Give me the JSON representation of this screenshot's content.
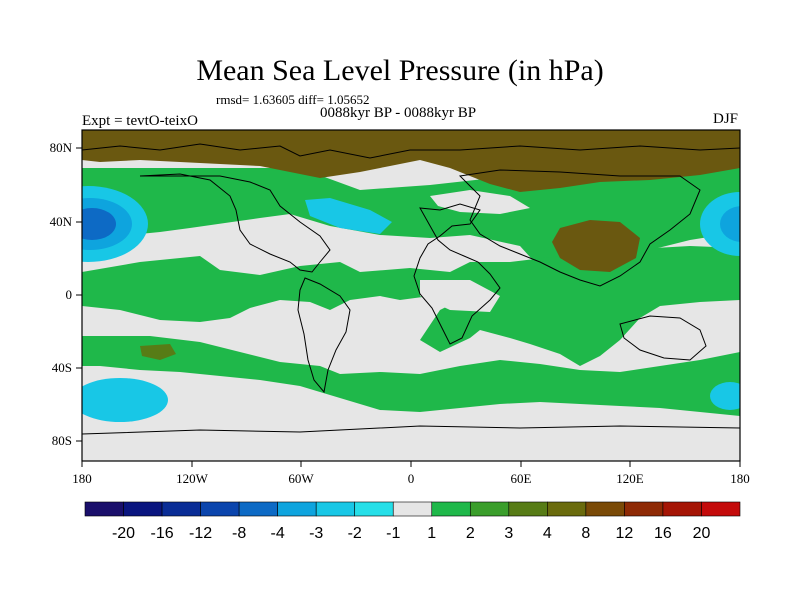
{
  "title": "Mean Sea Level Pressure (in hPa)",
  "stats": "rmsd= 1.63605 diff= 1.05652",
  "experiment_label": "Expt = tevtO-teixO",
  "period_label": "0088kyr BP - 0088kyr BP",
  "season_label": "DJF",
  "axes": {
    "x_ticks": [
      "180",
      "120W",
      "60W",
      "0",
      "60E",
      "120E",
      "180"
    ],
    "y_ticks": [
      "80N",
      "40N",
      "0",
      "40S",
      "80S"
    ]
  },
  "colorbar": {
    "labels": [
      "-20",
      "-16",
      "-12",
      "-8",
      "-4",
      "-3",
      "-2",
      "-1",
      "1",
      "2",
      "3",
      "4",
      "8",
      "12",
      "16",
      "20"
    ],
    "colors": [
      "#1a0f6b",
      "#0a157f",
      "#0a2d96",
      "#0b45ad",
      "#0d6ac5",
      "#0ea4de",
      "#18c7e6",
      "#26dfe8",
      "#e6e6e6",
      "#1fb84a",
      "#3a9e2b",
      "#577c16",
      "#6a6b0d",
      "#7a4a07",
      "#8e2a05",
      "#a51505",
      "#c40b0b"
    ]
  },
  "map": {
    "background_color": "#e6e6e6",
    "regions": [
      {
        "name": "north-polar-high",
        "level": "4 to 8",
        "color": "#6a5810"
      },
      {
        "name": "northern-midlatitude-band",
        "level": "1 to 2",
        "color": "#1fb84a"
      },
      {
        "name": "tropical-band",
        "level": "1 to 2",
        "color": "#1fb84a"
      },
      {
        "name": "southern-ocean-band",
        "level": "1 to 2",
        "color": "#1fb84a"
      },
      {
        "name": "asian-high",
        "level": "4 to 8",
        "color": "#6a5810"
      },
      {
        "name": "north-pacific-low",
        "level": "-8 to -4",
        "color": "#0d6ac5"
      },
      {
        "name": "north-atlantic-low",
        "level": "-3 to -2",
        "color": "#26dfe8"
      },
      {
        "name": "south-pacific-low",
        "level": "-3 to -2",
        "color": "#26dfe8"
      }
    ]
  }
}
